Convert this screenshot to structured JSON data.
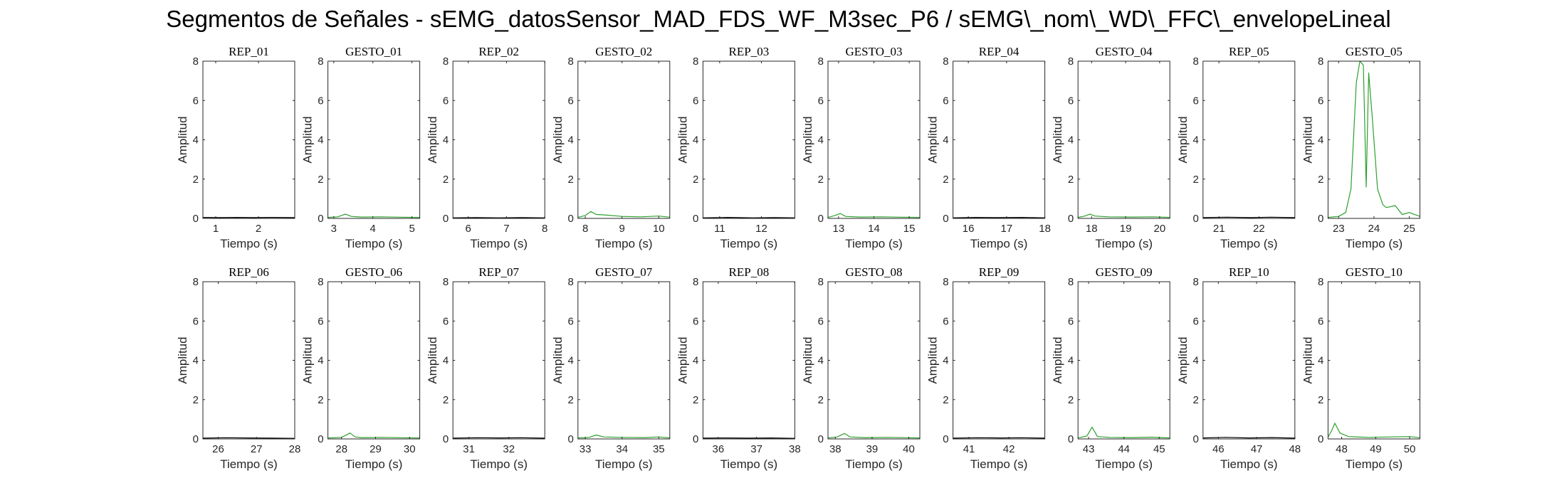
{
  "figure": {
    "title": "Segmentos de Señales - sEMG_datosSensor_MAD_FDS_WF_M3sec_P6 / sEMG\\_nom\\_WD\\_FFC\\_envelopeLineal",
    "colors": {
      "rep": "#000000",
      "gesture": "#2ca02c",
      "axes": "#262626"
    }
  },
  "chart_data": [
    {
      "type": "line",
      "title": "REP_01",
      "xlabel": "Tiempo (s)",
      "ylabel": "Amplitud",
      "xlim": [
        0.7,
        2.85
      ],
      "ylim": [
        0,
        8
      ],
      "xticks": [
        1,
        2
      ],
      "yticks": [
        0,
        2,
        4,
        6,
        8
      ],
      "series": [
        {
          "color": "#000000",
          "x": [
            0.7,
            1.1,
            1.5,
            1.9,
            2.3,
            2.85
          ],
          "y": [
            0.05,
            0.04,
            0.05,
            0.04,
            0.05,
            0.04
          ]
        }
      ]
    },
    {
      "type": "line",
      "title": "GESTO_01",
      "xlabel": "Tiempo (s)",
      "ylabel": "Amplitud",
      "xlim": [
        2.85,
        5.2
      ],
      "ylim": [
        0,
        8
      ],
      "xticks": [
        3,
        4,
        5
      ],
      "yticks": [
        0,
        2,
        4,
        6,
        8
      ],
      "series": [
        {
          "color": "#2ca02c",
          "x": [
            2.85,
            3.1,
            3.3,
            3.45,
            3.7,
            4.2,
            4.7,
            5.2
          ],
          "y": [
            0.05,
            0.08,
            0.22,
            0.1,
            0.07,
            0.08,
            0.06,
            0.05
          ]
        }
      ]
    },
    {
      "type": "line",
      "title": "REP_02",
      "xlabel": "Tiempo (s)",
      "ylabel": "Amplitud",
      "xlim": [
        5.6,
        8.0
      ],
      "ylim": [
        0,
        8
      ],
      "xticks": [
        6,
        7,
        8
      ],
      "yticks": [
        0,
        2,
        4,
        6,
        8
      ],
      "series": [
        {
          "color": "#000000",
          "x": [
            5.6,
            6.2,
            6.8,
            7.4,
            8.0
          ],
          "y": [
            0.03,
            0.04,
            0.03,
            0.04,
            0.03
          ]
        }
      ]
    },
    {
      "type": "line",
      "title": "GESTO_02",
      "xlabel": "Tiempo (s)",
      "ylabel": "Amplitud",
      "xlim": [
        7.8,
        10.3
      ],
      "ylim": [
        0,
        8
      ],
      "xticks": [
        8,
        9,
        10
      ],
      "yticks": [
        0,
        2,
        4,
        6,
        8
      ],
      "series": [
        {
          "color": "#2ca02c",
          "x": [
            7.8,
            8.0,
            8.15,
            8.3,
            8.5,
            9.0,
            9.5,
            10.0,
            10.3
          ],
          "y": [
            0.05,
            0.15,
            0.35,
            0.2,
            0.18,
            0.1,
            0.08,
            0.12,
            0.06
          ]
        }
      ]
    },
    {
      "type": "line",
      "title": "REP_03",
      "xlabel": "Tiempo (s)",
      "ylabel": "Amplitud",
      "xlim": [
        10.6,
        12.8
      ],
      "ylim": [
        0,
        8
      ],
      "xticks": [
        11,
        12
      ],
      "yticks": [
        0,
        2,
        4,
        6,
        8
      ],
      "series": [
        {
          "color": "#000000",
          "x": [
            10.6,
            11.2,
            11.8,
            12.3,
            12.8
          ],
          "y": [
            0.03,
            0.05,
            0.03,
            0.04,
            0.03
          ]
        }
      ]
    },
    {
      "type": "line",
      "title": "GESTO_03",
      "xlabel": "Tiempo (s)",
      "ylabel": "Amplitud",
      "xlim": [
        12.7,
        15.3
      ],
      "ylim": [
        0,
        8
      ],
      "xticks": [
        13,
        14,
        15
      ],
      "yticks": [
        0,
        2,
        4,
        6,
        8
      ],
      "series": [
        {
          "color": "#2ca02c",
          "x": [
            12.7,
            12.9,
            13.05,
            13.2,
            13.6,
            14.2,
            14.8,
            15.3
          ],
          "y": [
            0.05,
            0.15,
            0.25,
            0.1,
            0.07,
            0.08,
            0.06,
            0.05
          ]
        }
      ]
    },
    {
      "type": "line",
      "title": "REP_04",
      "xlabel": "Tiempo (s)",
      "ylabel": "Amplitud",
      "xlim": [
        15.6,
        18.0
      ],
      "ylim": [
        0,
        8
      ],
      "xticks": [
        16,
        17,
        18
      ],
      "yticks": [
        0,
        2,
        4,
        6,
        8
      ],
      "series": [
        {
          "color": "#000000",
          "x": [
            15.6,
            16.2,
            16.8,
            17.4,
            18.0
          ],
          "y": [
            0.03,
            0.05,
            0.04,
            0.05,
            0.03
          ]
        }
      ]
    },
    {
      "type": "line",
      "title": "GESTO_04",
      "xlabel": "Tiempo (s)",
      "ylabel": "Amplitud",
      "xlim": [
        17.6,
        20.3
      ],
      "ylim": [
        0,
        8
      ],
      "xticks": [
        18,
        19,
        20
      ],
      "yticks": [
        0,
        2,
        4,
        6,
        8
      ],
      "series": [
        {
          "color": "#2ca02c",
          "x": [
            17.6,
            17.8,
            17.95,
            18.1,
            18.5,
            19.2,
            19.8,
            20.3
          ],
          "y": [
            0.05,
            0.12,
            0.22,
            0.12,
            0.08,
            0.07,
            0.08,
            0.05
          ]
        }
      ]
    },
    {
      "type": "line",
      "title": "REP_05",
      "xlabel": "Tiempo (s)",
      "ylabel": "Amplitud",
      "xlim": [
        20.6,
        22.9
      ],
      "ylim": [
        0,
        8
      ],
      "xticks": [
        21,
        22
      ],
      "yticks": [
        0,
        2,
        4,
        6,
        8
      ],
      "series": [
        {
          "color": "#000000",
          "x": [
            20.6,
            21.2,
            21.8,
            22.3,
            22.9
          ],
          "y": [
            0.04,
            0.06,
            0.04,
            0.06,
            0.04
          ]
        }
      ]
    },
    {
      "type": "line",
      "title": "GESTO_05",
      "xlabel": "Tiempo (s)",
      "ylabel": "Amplitud",
      "xlim": [
        22.7,
        25.3
      ],
      "ylim": [
        0,
        8
      ],
      "xticks": [
        23,
        24,
        25
      ],
      "yticks": [
        0,
        2,
        4,
        6,
        8
      ],
      "series": [
        {
          "color": "#2ca02c",
          "x": [
            22.7,
            23.0,
            23.2,
            23.35,
            23.5,
            23.6,
            23.7,
            23.78,
            23.85,
            23.95,
            24.1,
            24.25,
            24.35,
            24.6,
            24.8,
            25.0,
            25.3
          ],
          "y": [
            0.05,
            0.1,
            0.3,
            1.5,
            6.9,
            8.0,
            7.8,
            1.6,
            7.4,
            5.2,
            1.5,
            0.7,
            0.55,
            0.65,
            0.2,
            0.3,
            0.1
          ]
        }
      ]
    },
    {
      "type": "line",
      "title": "REP_06",
      "xlabel": "Tiempo (s)",
      "ylabel": "Amplitud",
      "xlim": [
        25.6,
        28.0
      ],
      "ylim": [
        0,
        8
      ],
      "xticks": [
        26,
        27,
        28
      ],
      "yticks": [
        0,
        2,
        4,
        6,
        8
      ],
      "series": [
        {
          "color": "#000000",
          "x": [
            25.6,
            26.2,
            26.8,
            27.4,
            28.0
          ],
          "y": [
            0.04,
            0.06,
            0.05,
            0.04,
            0.03
          ]
        }
      ]
    },
    {
      "type": "line",
      "title": "GESTO_06",
      "xlabel": "Tiempo (s)",
      "ylabel": "Amplitud",
      "xlim": [
        27.6,
        30.3
      ],
      "ylim": [
        0,
        8
      ],
      "xticks": [
        28,
        29,
        30
      ],
      "yticks": [
        0,
        2,
        4,
        6,
        8
      ],
      "series": [
        {
          "color": "#2ca02c",
          "x": [
            27.6,
            28.0,
            28.25,
            28.4,
            28.6,
            29.2,
            29.8,
            30.3
          ],
          "y": [
            0.05,
            0.08,
            0.3,
            0.1,
            0.07,
            0.08,
            0.06,
            0.05
          ]
        }
      ]
    },
    {
      "type": "line",
      "title": "REP_07",
      "xlabel": "Tiempo (s)",
      "ylabel": "Amplitud",
      "xlim": [
        30.6,
        32.9
      ],
      "ylim": [
        0,
        8
      ],
      "xticks": [
        31,
        32
      ],
      "yticks": [
        0,
        2,
        4,
        6,
        8
      ],
      "series": [
        {
          "color": "#000000",
          "x": [
            30.6,
            31.2,
            31.8,
            32.3,
            32.9
          ],
          "y": [
            0.04,
            0.06,
            0.05,
            0.06,
            0.04
          ]
        }
      ]
    },
    {
      "type": "line",
      "title": "GESTO_07",
      "xlabel": "Tiempo (s)",
      "ylabel": "Amplitud",
      "xlim": [
        32.8,
        35.3
      ],
      "ylim": [
        0,
        8
      ],
      "xticks": [
        33,
        34,
        35
      ],
      "yticks": [
        0,
        2,
        4,
        6,
        8
      ],
      "series": [
        {
          "color": "#2ca02c",
          "x": [
            32.8,
            33.1,
            33.3,
            33.5,
            34.0,
            34.6,
            35.0,
            35.3
          ],
          "y": [
            0.05,
            0.08,
            0.2,
            0.1,
            0.08,
            0.07,
            0.1,
            0.05
          ]
        }
      ]
    },
    {
      "type": "line",
      "title": "REP_08",
      "xlabel": "Tiempo (s)",
      "ylabel": "Amplitud",
      "xlim": [
        35.6,
        38.0
      ],
      "ylim": [
        0,
        8
      ],
      "xticks": [
        36,
        37,
        38
      ],
      "yticks": [
        0,
        2,
        4,
        6,
        8
      ],
      "series": [
        {
          "color": "#000000",
          "x": [
            35.6,
            36.2,
            36.8,
            37.4,
            38.0
          ],
          "y": [
            0.04,
            0.05,
            0.04,
            0.05,
            0.03
          ]
        }
      ]
    },
    {
      "type": "line",
      "title": "GESTO_08",
      "xlabel": "Tiempo (s)",
      "ylabel": "Amplitud",
      "xlim": [
        37.8,
        40.3
      ],
      "ylim": [
        0,
        8
      ],
      "xticks": [
        38,
        39,
        40
      ],
      "yticks": [
        0,
        2,
        4,
        6,
        8
      ],
      "series": [
        {
          "color": "#2ca02c",
          "x": [
            37.8,
            38.05,
            38.25,
            38.4,
            38.8,
            39.4,
            40.0,
            40.3
          ],
          "y": [
            0.05,
            0.1,
            0.28,
            0.1,
            0.07,
            0.08,
            0.06,
            0.05
          ]
        }
      ]
    },
    {
      "type": "line",
      "title": "REP_09",
      "xlabel": "Tiempo (s)",
      "ylabel": "Amplitud",
      "xlim": [
        40.6,
        42.9
      ],
      "ylim": [
        0,
        8
      ],
      "xticks": [
        41,
        42
      ],
      "yticks": [
        0,
        2,
        4,
        6,
        8
      ],
      "series": [
        {
          "color": "#000000",
          "x": [
            40.6,
            41.2,
            41.8,
            42.3,
            42.9
          ],
          "y": [
            0.04,
            0.06,
            0.05,
            0.06,
            0.04
          ]
        }
      ]
    },
    {
      "type": "line",
      "title": "GESTO_09",
      "xlabel": "Tiempo (s)",
      "ylabel": "Amplitud",
      "xlim": [
        42.7,
        45.3
      ],
      "ylim": [
        0,
        8
      ],
      "xticks": [
        43,
        44,
        45
      ],
      "yticks": [
        0,
        2,
        4,
        6,
        8
      ],
      "series": [
        {
          "color": "#2ca02c",
          "x": [
            42.7,
            42.95,
            43.1,
            43.25,
            43.6,
            44.2,
            44.8,
            45.3
          ],
          "y": [
            0.05,
            0.15,
            0.6,
            0.12,
            0.08,
            0.07,
            0.09,
            0.05
          ]
        }
      ]
    },
    {
      "type": "line",
      "title": "REP_10",
      "xlabel": "Tiempo (s)",
      "ylabel": "Amplitud",
      "xlim": [
        45.6,
        48.0
      ],
      "ylim": [
        0,
        8
      ],
      "xticks": [
        46,
        47,
        48
      ],
      "yticks": [
        0,
        2,
        4,
        6,
        8
      ],
      "series": [
        {
          "color": "#000000",
          "x": [
            45.6,
            46.2,
            46.8,
            47.4,
            48.0
          ],
          "y": [
            0.05,
            0.08,
            0.05,
            0.07,
            0.04
          ]
        }
      ]
    },
    {
      "type": "line",
      "title": "GESTO_10",
      "xlabel": "Tiempo (s)",
      "ylabel": "Amplitud",
      "xlim": [
        47.6,
        50.3
      ],
      "ylim": [
        0,
        8
      ],
      "xticks": [
        48,
        49,
        50
      ],
      "yticks": [
        0,
        2,
        4,
        6,
        8
      ],
      "series": [
        {
          "color": "#2ca02c",
          "x": [
            47.6,
            47.7,
            47.8,
            47.95,
            48.2,
            48.8,
            49.4,
            50.0,
            50.3
          ],
          "y": [
            0.1,
            0.4,
            0.8,
            0.3,
            0.12,
            0.08,
            0.1,
            0.12,
            0.06
          ]
        }
      ]
    }
  ]
}
